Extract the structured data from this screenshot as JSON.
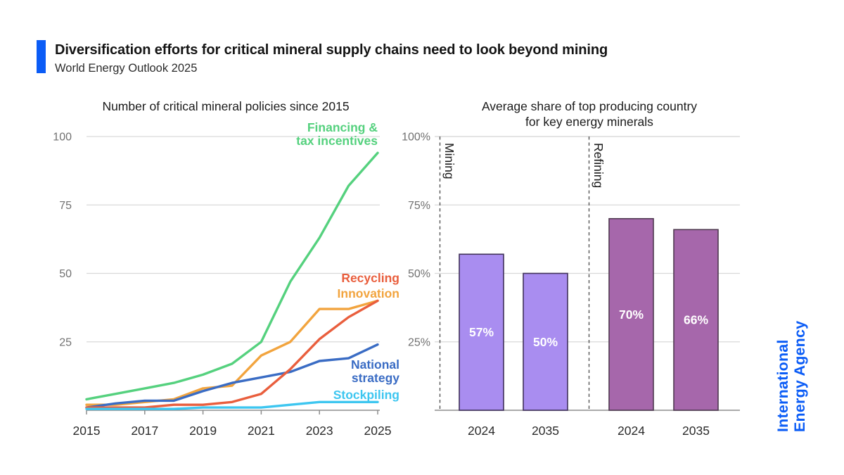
{
  "header": {
    "title": "Diversification efforts for critical mineral supply chains need to look beyond mining",
    "subtitle": "World Energy Outlook 2025",
    "accent_color": "#0b5cf6"
  },
  "branding": {
    "line1": "International",
    "line2": "Energy Agency",
    "color": "#0b5cf6"
  },
  "chart_data": [
    {
      "type": "line",
      "title": "Number of critical mineral policies since 2015",
      "x": [
        2015,
        2016,
        2017,
        2018,
        2019,
        2020,
        2021,
        2022,
        2023,
        2024,
        2025
      ],
      "x_ticks": [
        2015,
        2017,
        2019,
        2021,
        2023,
        2025
      ],
      "x_tick_labels": [
        "2015",
        "2017",
        "2019",
        "2021",
        "2023",
        "2025"
      ],
      "y_ticks": [
        25,
        50,
        75,
        100
      ],
      "y_tick_labels": [
        "25",
        "50",
        "75",
        "100"
      ],
      "ylim": [
        0,
        100
      ],
      "grid": true,
      "legend_position": "inline-end-labels",
      "series": [
        {
          "name": "Financing & tax incentives",
          "label_lines": [
            "Financing &",
            "tax incentives"
          ],
          "color": "#55d17e",
          "values": [
            4,
            6,
            8,
            10,
            13,
            17,
            25,
            47,
            63,
            82,
            94
          ]
        },
        {
          "name": "Innovation",
          "label_lines": [
            "Innovation"
          ],
          "color": "#f2a43e",
          "values": [
            2,
            2,
            3,
            4,
            8,
            9,
            20,
            25,
            37,
            37,
            40
          ]
        },
        {
          "name": "Recycling",
          "label_lines": [
            "Recycling"
          ],
          "color": "#e95e3d",
          "values": [
            1,
            1,
            1,
            2,
            2,
            3,
            6,
            15,
            26,
            34,
            40
          ]
        },
        {
          "name": "National strategy",
          "label_lines": [
            "National",
            "strategy"
          ],
          "color": "#3a6cc4",
          "values": [
            1,
            2.5,
            3.5,
            3.5,
            7,
            10,
            12,
            14,
            18,
            19,
            24
          ]
        },
        {
          "name": "Stockpiling",
          "label_lines": [
            "Stockpiling"
          ],
          "color": "#3dc6f0",
          "values": [
            0.5,
            0.5,
            0.5,
            0.5,
            1,
            1,
            1,
            2,
            3,
            3,
            3
          ]
        }
      ]
    },
    {
      "type": "bar",
      "title": "Average share of top producing country for key energy minerals",
      "title_lines": [
        "Average share of top producing country",
        "for key energy minerals"
      ],
      "y_ticks": [
        25,
        50,
        75,
        100
      ],
      "y_tick_labels": [
        "25%",
        "50%",
        "75%",
        "100%"
      ],
      "ylim": [
        0,
        100
      ],
      "grid": true,
      "groups": [
        {
          "name": "Mining",
          "fill": "#a98df0",
          "border": "#40315a",
          "bars": [
            {
              "year": "2024",
              "value": 57,
              "value_label": "57%"
            },
            {
              "year": "2035",
              "value": 50,
              "value_label": "50%"
            }
          ]
        },
        {
          "name": "Refining",
          "fill": "#a667ab",
          "border": "#4f3a50",
          "bars": [
            {
              "year": "2024",
              "value": 70,
              "value_label": "70%"
            },
            {
              "year": "2035",
              "value": 66,
              "value_label": "66%"
            }
          ]
        }
      ]
    }
  ]
}
